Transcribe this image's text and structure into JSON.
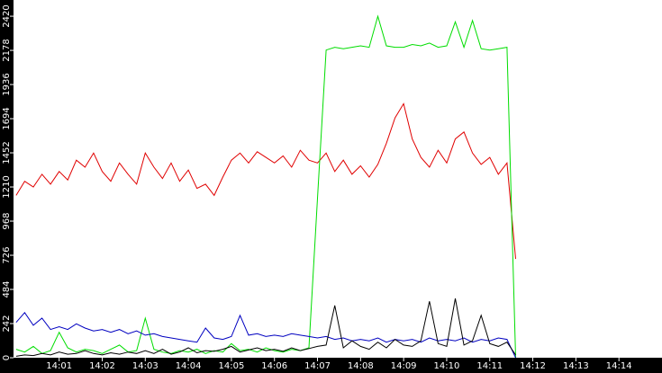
{
  "chart_data": {
    "type": "line",
    "x": [
      0,
      0.2,
      0.4,
      0.6,
      0.8,
      1,
      1.2,
      1.4,
      1.6,
      1.8,
      2,
      2.2,
      2.4,
      2.6,
      2.8,
      3,
      3.2,
      3.4,
      3.6,
      3.8,
      4,
      4.2,
      4.4,
      4.6,
      4.8,
      5,
      5.2,
      5.4,
      5.6,
      5.8,
      6,
      6.2,
      6.4,
      6.6,
      6.8,
      7,
      7.2,
      7.4,
      7.6,
      7.8,
      8,
      8.2,
      8.4,
      8.6,
      8.8,
      9,
      9.2,
      9.4,
      9.6,
      9.8,
      10,
      10.2,
      10.4,
      10.6,
      10.8,
      11,
      11.2,
      11.4,
      11.6
    ],
    "series": [
      {
        "color": "#e00000",
        "values": [
          1150,
          1250,
          1210,
          1300,
          1230,
          1320,
          1260,
          1400,
          1350,
          1450,
          1320,
          1250,
          1380,
          1300,
          1230,
          1450,
          1350,
          1270,
          1380,
          1250,
          1330,
          1200,
          1230,
          1150,
          1280,
          1400,
          1450,
          1380,
          1460,
          1420,
          1380,
          1430,
          1350,
          1470,
          1400,
          1380,
          1450,
          1320,
          1400,
          1300,
          1360,
          1280,
          1370,
          1520,
          1700,
          1800,
          1550,
          1420,
          1350,
          1470,
          1380,
          1550,
          1600,
          1450,
          1370,
          1420,
          1300,
          1380,
          700
        ]
      },
      {
        "color": "#00dd00",
        "values": [
          60,
          40,
          80,
          30,
          50,
          180,
          70,
          40,
          60,
          50,
          30,
          60,
          90,
          40,
          50,
          280,
          60,
          40,
          30,
          50,
          40,
          60,
          30,
          50,
          40,
          100,
          50,
          60,
          40,
          70,
          50,
          40,
          60,
          50,
          70,
          1130,
          2180,
          2200,
          2190,
          2200,
          2210,
          2200,
          2420,
          2210,
          2200,
          2200,
          2220,
          2210,
          2230,
          2200,
          2210,
          2380,
          2200,
          2390,
          2190,
          2180,
          2190,
          2200,
          0
        ]
      },
      {
        "color": "#0000c0",
        "values": [
          250,
          320,
          230,
          280,
          200,
          220,
          200,
          240,
          210,
          190,
          200,
          180,
          200,
          170,
          190,
          160,
          170,
          150,
          140,
          130,
          120,
          110,
          210,
          140,
          130,
          150,
          300,
          160,
          170,
          150,
          160,
          150,
          170,
          160,
          150,
          140,
          150,
          130,
          140,
          120,
          130,
          120,
          140,
          110,
          130,
          120,
          130,
          110,
          140,
          120,
          130,
          120,
          140,
          110,
          130,
          120,
          140,
          130,
          0
        ]
      },
      {
        "color": "#000000",
        "values": [
          10,
          20,
          15,
          30,
          20,
          40,
          25,
          30,
          50,
          30,
          20,
          35,
          25,
          40,
          30,
          50,
          30,
          60,
          25,
          40,
          70,
          35,
          50,
          45,
          60,
          80,
          40,
          55,
          70,
          50,
          60,
          45,
          70,
          50,
          65,
          80,
          90,
          370,
          70,
          120,
          80,
          60,
          110,
          70,
          130,
          90,
          80,
          120,
          400,
          100,
          80,
          420,
          90,
          120,
          300,
          100,
          80,
          110,
          20
        ]
      }
    ],
    "xlim": [
      -0.06,
      15.0
    ],
    "xticks": [
      {
        "value": 1,
        "label": "14:01"
      },
      {
        "value": 2,
        "label": "14:02"
      },
      {
        "value": 3,
        "label": "14:03"
      },
      {
        "value": 4,
        "label": "14:04"
      },
      {
        "value": 5,
        "label": "14:05"
      },
      {
        "value": 6,
        "label": "14:06"
      },
      {
        "value": 7,
        "label": "14:07"
      },
      {
        "value": 8,
        "label": "14:08"
      },
      {
        "value": 9,
        "label": "14:09"
      },
      {
        "value": 10,
        "label": "14:10"
      },
      {
        "value": 11,
        "label": "14:11"
      },
      {
        "value": 12,
        "label": "14:12"
      },
      {
        "value": 13,
        "label": "14:13"
      },
      {
        "value": 14,
        "label": "14:14"
      }
    ],
    "ylim": [
      0,
      2535
    ],
    "yticks": [
      0,
      242,
      484,
      726,
      968,
      1210,
      1452,
      1694,
      1936,
      2178,
      2420
    ]
  }
}
